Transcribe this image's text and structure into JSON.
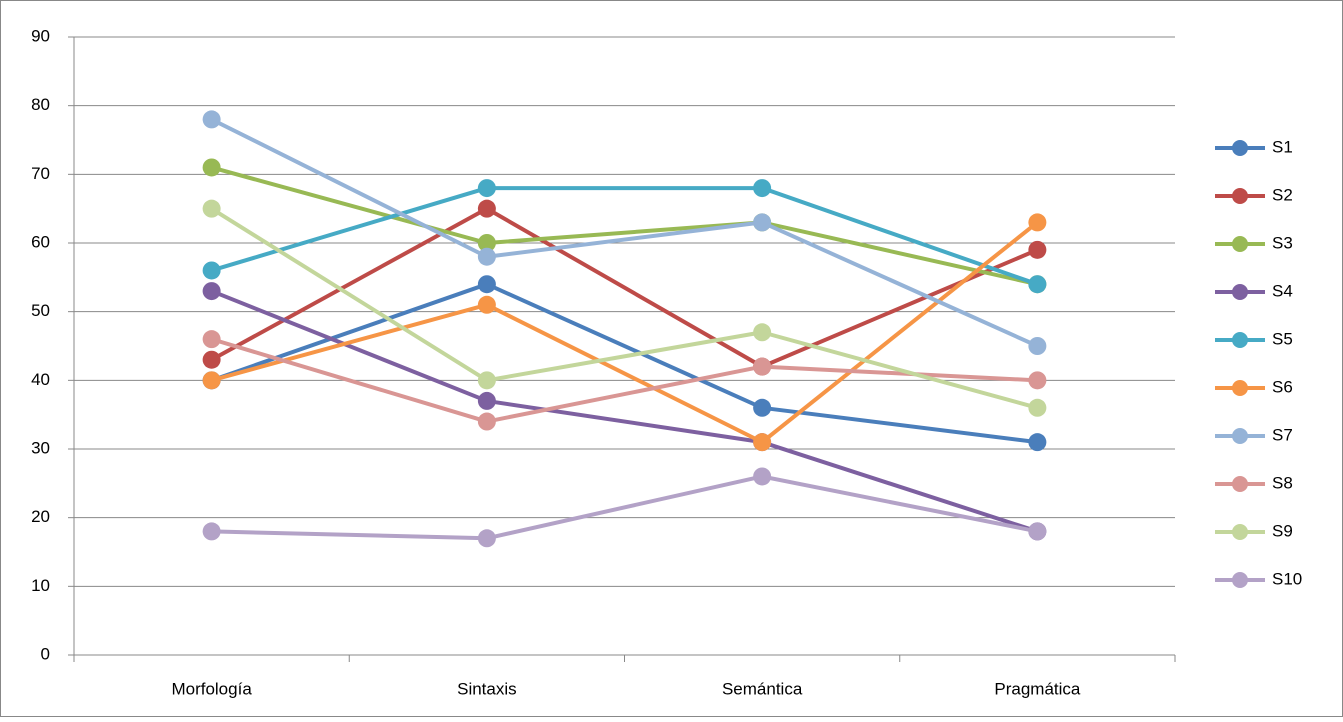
{
  "chart_data": {
    "type": "line",
    "categories": [
      "Morfología",
      "Sintaxis",
      "Semántica",
      "Pragmática"
    ],
    "series": [
      {
        "name": "S1",
        "color": "#4a7ebb",
        "values": [
          40,
          54,
          36,
          31
        ]
      },
      {
        "name": "S2",
        "color": "#be4b48",
        "values": [
          43,
          65,
          42,
          59
        ]
      },
      {
        "name": "S3",
        "color": "#98b954",
        "values": [
          71,
          60,
          63,
          54
        ]
      },
      {
        "name": "S4",
        "color": "#7d60a0",
        "values": [
          53,
          37,
          31,
          18
        ]
      },
      {
        "name": "S5",
        "color": "#46aac5",
        "values": [
          56,
          68,
          68,
          54
        ]
      },
      {
        "name": "S6",
        "color": "#f69546",
        "values": [
          40,
          51,
          31,
          63
        ]
      },
      {
        "name": "S7",
        "color": "#95b3d7",
        "values": [
          78,
          58,
          63,
          45
        ]
      },
      {
        "name": "S8",
        "color": "#d99694",
        "values": [
          46,
          34,
          42,
          40
        ]
      },
      {
        "name": "S9",
        "color": "#c3d69b",
        "values": [
          65,
          40,
          47,
          36
        ]
      },
      {
        "name": "S10",
        "color": "#b3a2c7",
        "values": [
          18,
          17,
          26,
          18
        ]
      }
    ],
    "ylim": [
      0,
      90
    ],
    "yticks": [
      0,
      10,
      20,
      30,
      40,
      50,
      60,
      70,
      80,
      90
    ],
    "grid": true,
    "legend": "right"
  }
}
